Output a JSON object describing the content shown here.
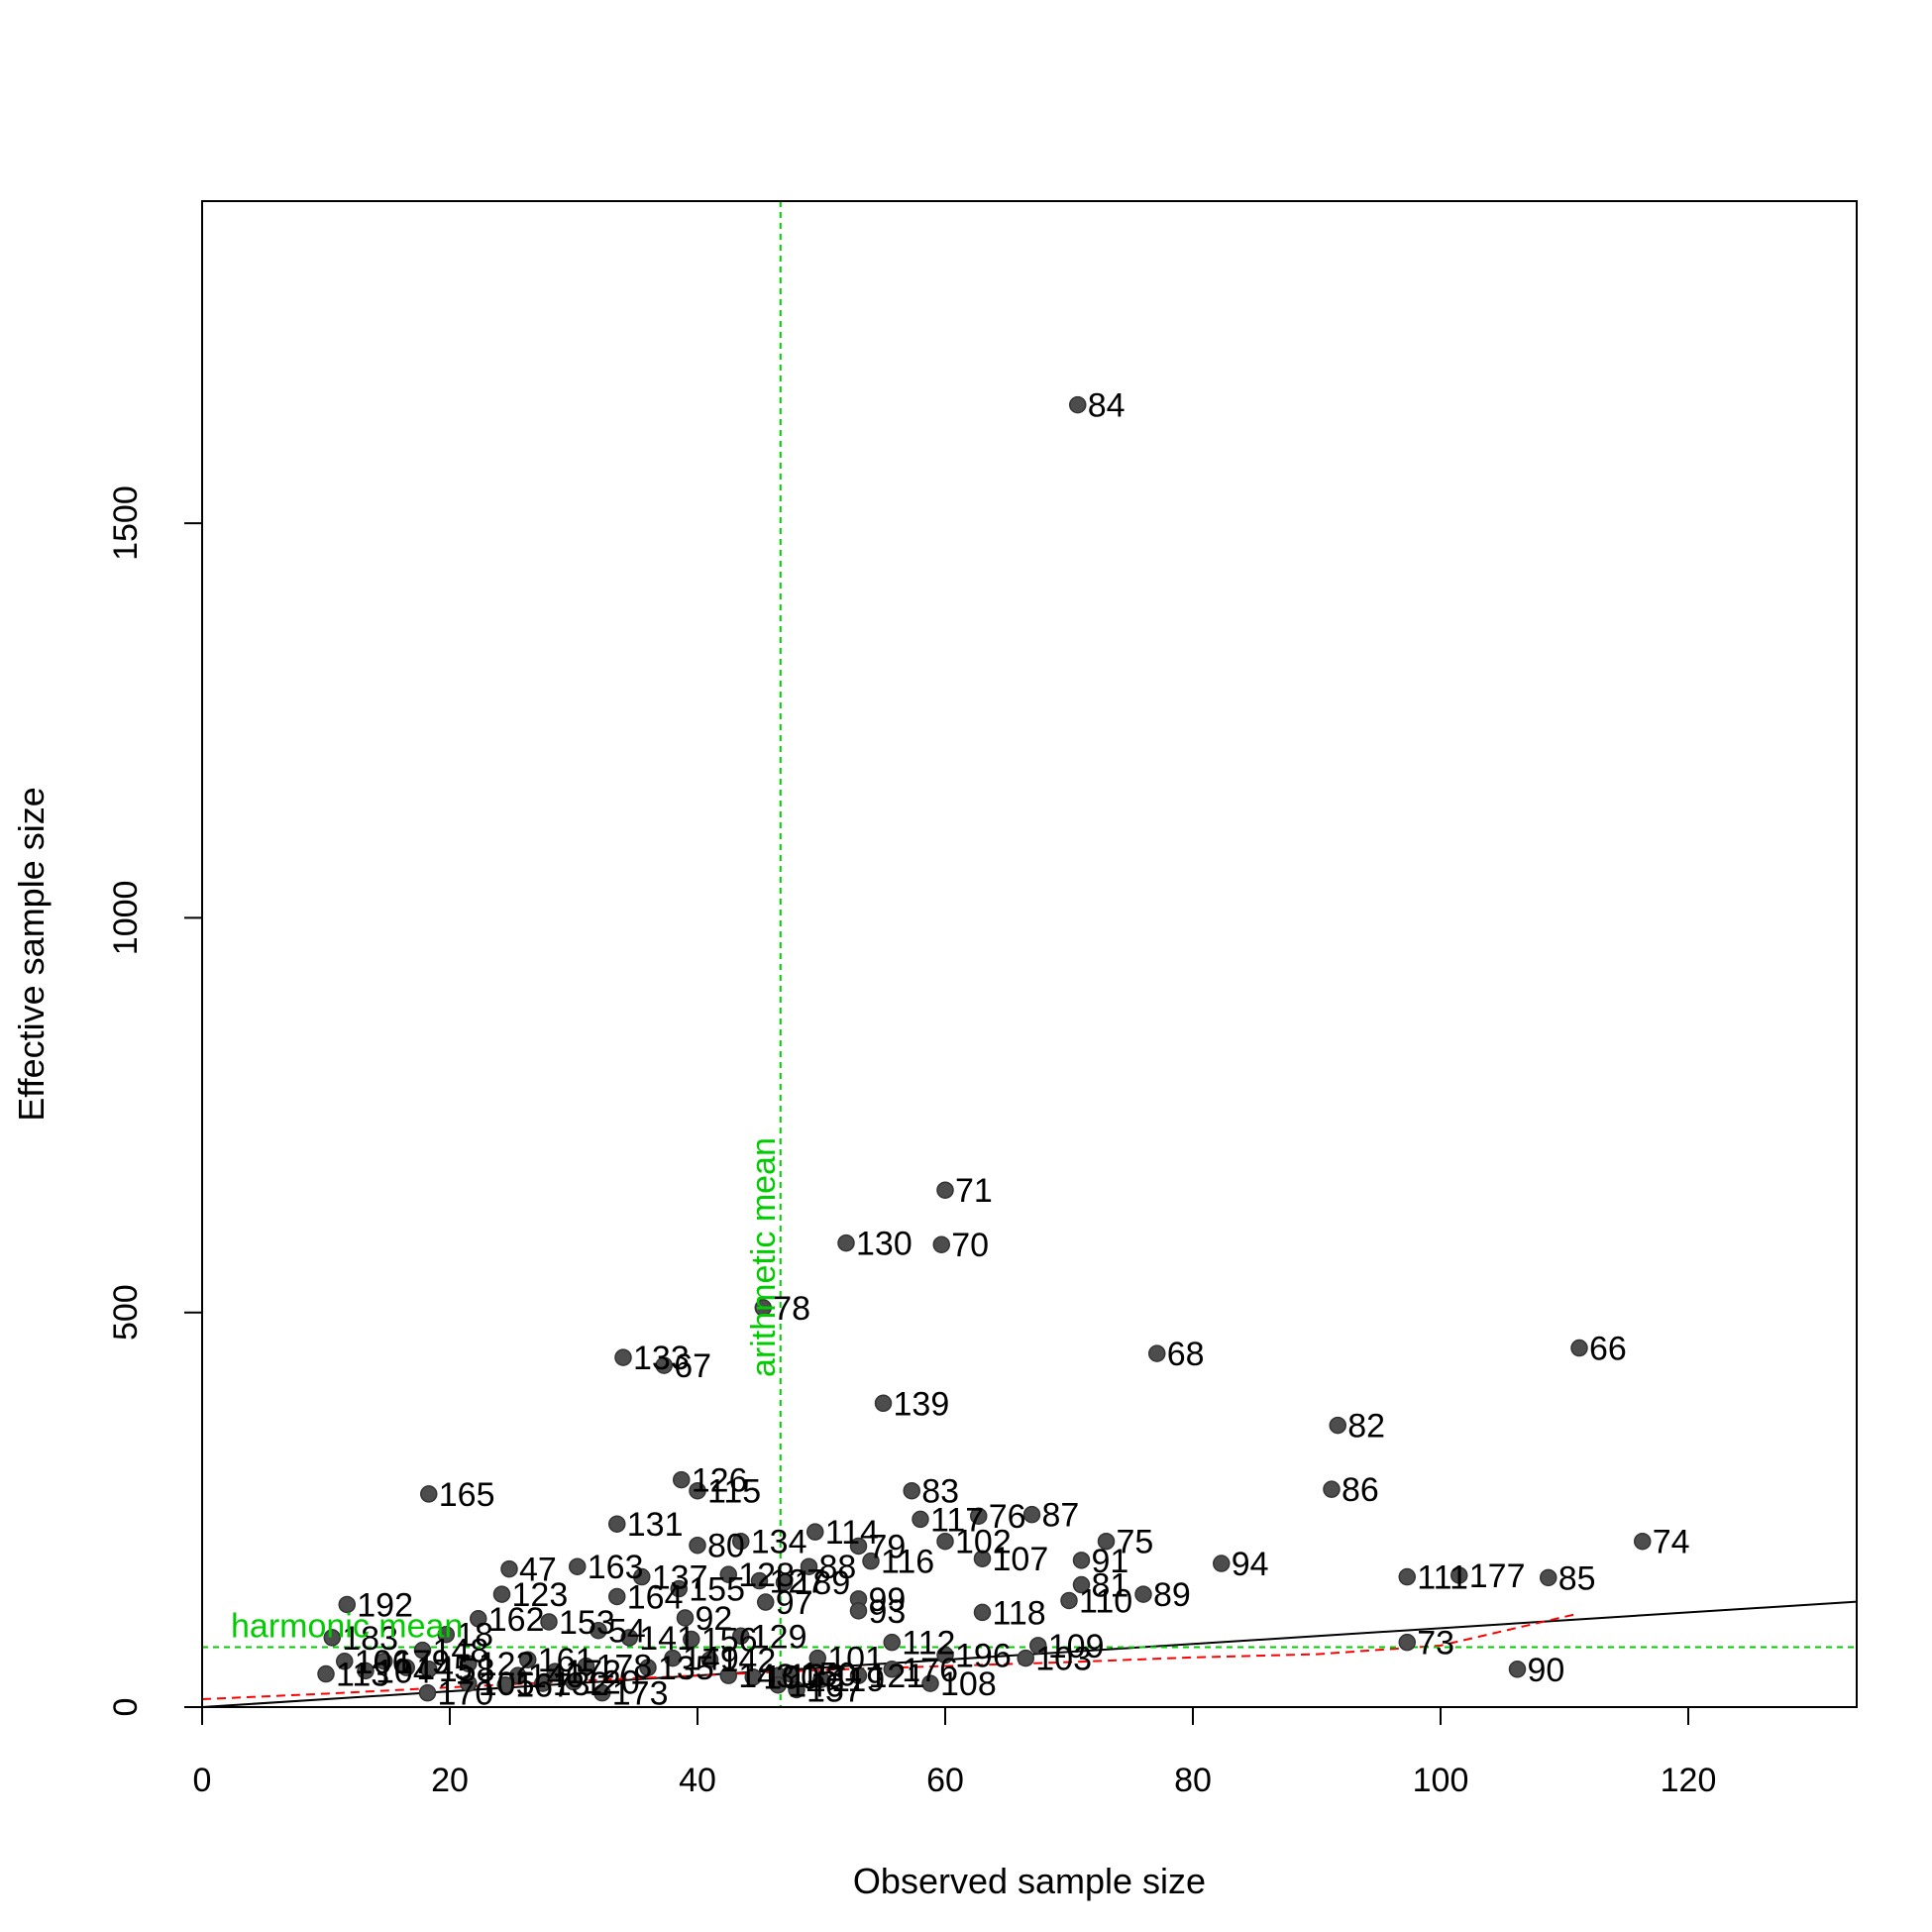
{
  "chart_data": {
    "type": "scatter",
    "title": "",
    "xlabel": "Observed sample size",
    "ylabel": "Effective sample size",
    "xlim": [
      0,
      134
    ],
    "ylim": [
      0,
      1900
    ],
    "x_ticks": [
      0,
      20,
      40,
      60,
      80,
      100,
      120
    ],
    "y_ticks": [
      0,
      500,
      1000,
      1500
    ],
    "grid": false,
    "legend": "none",
    "point_color": "#4d4d4d",
    "points": [
      {
        "label": "84",
        "x": 70.7,
        "y": 1650
      },
      {
        "label": "71",
        "x": 60.0,
        "y": 655
      },
      {
        "label": "130",
        "x": 52.0,
        "y": 588
      },
      {
        "label": "70",
        "x": 59.7,
        "y": 586
      },
      {
        "label": "78",
        "x": 45.3,
        "y": 506
      },
      {
        "label": "133",
        "x": 34.0,
        "y": 443
      },
      {
        "label": "67",
        "x": 37.3,
        "y": 433
      },
      {
        "label": "68",
        "x": 77.1,
        "y": 448
      },
      {
        "label": "66",
        "x": 111.2,
        "y": 455
      },
      {
        "label": "139",
        "x": 55.0,
        "y": 385
      },
      {
        "label": "82",
        "x": 91.7,
        "y": 357
      },
      {
        "label": "165",
        "x": 18.3,
        "y": 270
      },
      {
        "label": "126",
        "x": 38.7,
        "y": 288
      },
      {
        "label": "115",
        "x": 40.0,
        "y": 274
      },
      {
        "label": "83",
        "x": 57.3,
        "y": 274
      },
      {
        "label": "86",
        "x": 91.2,
        "y": 276
      },
      {
        "label": "117",
        "x": 58.0,
        "y": 238
      },
      {
        "label": "76",
        "x": 62.7,
        "y": 242
      },
      {
        "label": "87",
        "x": 67.0,
        "y": 244
      },
      {
        "label": "131",
        "x": 33.5,
        "y": 232
      },
      {
        "label": "80",
        "x": 40.0,
        "y": 205
      },
      {
        "label": "134",
        "x": 43.5,
        "y": 210
      },
      {
        "label": "114",
        "x": 49.5,
        "y": 222
      },
      {
        "label": "79",
        "x": 53.0,
        "y": 204
      },
      {
        "label": "102",
        "x": 60.0,
        "y": 210
      },
      {
        "label": "75",
        "x": 73.0,
        "y": 210
      },
      {
        "label": "74",
        "x": 116.3,
        "y": 210
      },
      {
        "label": "47",
        "x": 24.8,
        "y": 175
      },
      {
        "label": "163",
        "x": 30.3,
        "y": 178
      },
      {
        "label": "137",
        "x": 35.5,
        "y": 165
      },
      {
        "label": "155",
        "x": 38.5,
        "y": 150
      },
      {
        "label": "128",
        "x": 42.5,
        "y": 168
      },
      {
        "label": "127",
        "x": 45.0,
        "y": 160
      },
      {
        "label": "189",
        "x": 47.0,
        "y": 158
      },
      {
        "label": "88",
        "x": 49.0,
        "y": 178
      },
      {
        "label": "116",
        "x": 54.0,
        "y": 185
      },
      {
        "label": "107",
        "x": 63.0,
        "y": 188
      },
      {
        "label": "91",
        "x": 71.0,
        "y": 186
      },
      {
        "label": "94",
        "x": 82.3,
        "y": 182
      },
      {
        "label": "111",
        "x": 97.3,
        "y": 165
      },
      {
        "label": "177",
        "x": 101.5,
        "y": 167
      },
      {
        "label": "85",
        "x": 108.7,
        "y": 164
      },
      {
        "label": "123",
        "x": 24.2,
        "y": 143
      },
      {
        "label": "164",
        "x": 33.5,
        "y": 140
      },
      {
        "label": "97",
        "x": 45.5,
        "y": 133
      },
      {
        "label": "99",
        "x": 53.0,
        "y": 137
      },
      {
        "label": "81",
        "x": 71.0,
        "y": 155
      },
      {
        "label": "110",
        "x": 70.0,
        "y": 135
      },
      {
        "label": "89",
        "x": 76.0,
        "y": 143
      },
      {
        "label": "192",
        "x": 11.7,
        "y": 130
      },
      {
        "label": "93",
        "x": 53.0,
        "y": 122
      },
      {
        "label": "118",
        "x": 63.0,
        "y": 120
      },
      {
        "label": "162",
        "x": 22.3,
        "y": 112
      },
      {
        "label": "153",
        "x": 28.0,
        "y": 108
      },
      {
        "label": "54",
        "x": 32.0,
        "y": 97
      },
      {
        "label": "92",
        "x": 39.0,
        "y": 113
      },
      {
        "label": "141",
        "x": 34.5,
        "y": 88
      },
      {
        "label": "156",
        "x": 39.5,
        "y": 86
      },
      {
        "label": "129",
        "x": 43.5,
        "y": 90
      },
      {
        "label": "183",
        "x": 10.5,
        "y": 88
      },
      {
        "label": "18",
        "x": 19.7,
        "y": 92
      },
      {
        "label": "73",
        "x": 97.3,
        "y": 82
      },
      {
        "label": "112",
        "x": 55.7,
        "y": 82
      },
      {
        "label": "109",
        "x": 67.5,
        "y": 78
      },
      {
        "label": "196",
        "x": 60.0,
        "y": 66
      },
      {
        "label": "103",
        "x": 66.5,
        "y": 62
      },
      {
        "label": "101",
        "x": 49.7,
        "y": 62
      },
      {
        "label": "161",
        "x": 26.3,
        "y": 60
      },
      {
        "label": "148",
        "x": 17.8,
        "y": 72
      },
      {
        "label": "104",
        "x": 13.2,
        "y": 46
      },
      {
        "label": "106",
        "x": 11.5,
        "y": 58
      },
      {
        "label": "122",
        "x": 21.5,
        "y": 55
      },
      {
        "label": "178",
        "x": 31.0,
        "y": 52
      },
      {
        "label": "142",
        "x": 41.0,
        "y": 60
      },
      {
        "label": "172",
        "x": 28.5,
        "y": 45
      },
      {
        "label": "179",
        "x": 14.7,
        "y": 58
      },
      {
        "label": "145",
        "x": 16.5,
        "y": 50
      },
      {
        "label": "146",
        "x": 25.5,
        "y": 40
      },
      {
        "label": "158",
        "x": 18.3,
        "y": 48
      },
      {
        "label": "113",
        "x": 10.0,
        "y": 42
      },
      {
        "label": "90",
        "x": 106.2,
        "y": 48
      },
      {
        "label": "176",
        "x": 55.7,
        "y": 48
      },
      {
        "label": "121",
        "x": 53.0,
        "y": 40
      },
      {
        "label": "100",
        "x": 44.5,
        "y": 38
      },
      {
        "label": "138",
        "x": 46.5,
        "y": 40
      },
      {
        "label": "150",
        "x": 47.5,
        "y": 42
      },
      {
        "label": "119",
        "x": 50.0,
        "y": 35
      },
      {
        "label": "105",
        "x": 21.5,
        "y": 30
      },
      {
        "label": "167",
        "x": 24.5,
        "y": 28
      },
      {
        "label": "132",
        "x": 27.5,
        "y": 30
      },
      {
        "label": "120",
        "x": 30.0,
        "y": 32
      },
      {
        "label": "108",
        "x": 58.8,
        "y": 30
      },
      {
        "label": "170",
        "x": 18.2,
        "y": 18
      },
      {
        "label": "173",
        "x": 32.3,
        "y": 18
      },
      {
        "label": "157",
        "x": 48.0,
        "y": 22
      },
      {
        "label": "140",
        "x": 46.5,
        "y": 28
      },
      {
        "label": "143",
        "x": 42.5,
        "y": 40
      },
      {
        "label": "135",
        "x": 36.0,
        "y": 50
      },
      {
        "label": "149",
        "x": 38.0,
        "y": 62
      }
    ],
    "reference_lines": {
      "arithmetic_mean": {
        "label": "arithmetic mean",
        "x": 46.7,
        "color": "#00cc00"
      },
      "harmonic_mean": {
        "label": "harmonic mean",
        "y": 76,
        "color": "#00cc00"
      },
      "identity": {
        "x": [
          0,
          134
        ],
        "y": [
          0,
          134
        ],
        "color": "#000000"
      },
      "smoother": {
        "color": "#ff0000",
        "x": [
          0,
          10,
          20,
          30,
          40,
          50,
          60,
          70,
          80,
          90,
          100,
          111
        ],
        "y": [
          10,
          17,
          25,
          33,
          40,
          47,
          52,
          57,
          63,
          67,
          78,
          118
        ]
      }
    }
  }
}
